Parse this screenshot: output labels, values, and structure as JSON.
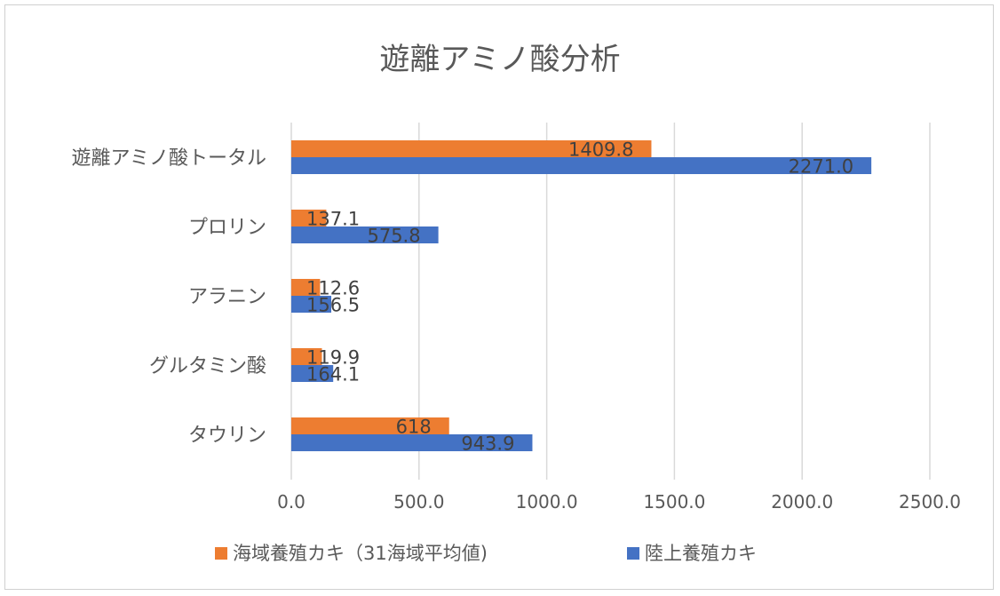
{
  "chart_data": {
    "type": "bar",
    "orientation": "horizontal",
    "title": "遊離アミノ酸分析",
    "categories": [
      "遊離アミノ酸トータル",
      "プロリン",
      "アラニン",
      "グルタミン酸",
      "タウリン"
    ],
    "series": [
      {
        "name": "海域養殖カキ（31海域平均値)",
        "color": "#ED7D31",
        "values": [
          1409.8,
          137.1,
          112.6,
          119.9,
          618
        ],
        "labels": [
          "1409.8",
          "137.1",
          "112.6",
          "119.9",
          "618"
        ]
      },
      {
        "name": "陸上養殖カキ",
        "color": "#4472C4",
        "values": [
          2271.0,
          575.8,
          156.5,
          164.1,
          943.9
        ],
        "labels": [
          "2271.0",
          "575.8",
          "156.5",
          "164.1",
          "943.9"
        ]
      }
    ],
    "xlim": [
      0,
      2500
    ],
    "ticks": [
      0,
      500,
      1000,
      1500,
      2000,
      2500
    ],
    "tick_labels": [
      "0.0",
      "500.0",
      "1000.0",
      "1500.0",
      "2000.0",
      "2500.0"
    ],
    "grid": true,
    "legend_position": "bottom"
  }
}
